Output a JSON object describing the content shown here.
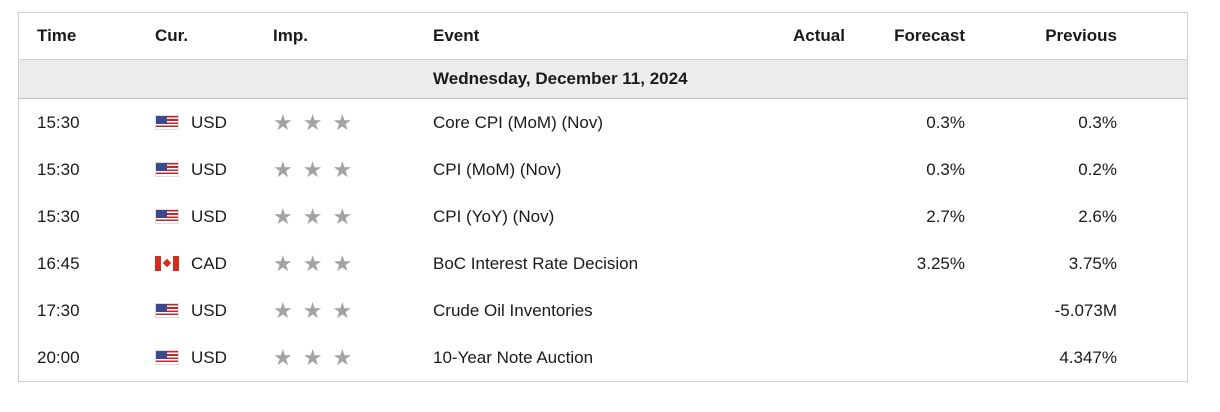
{
  "header": {
    "time": "Time",
    "currency": "Cur.",
    "importance": "Imp.",
    "event": "Event",
    "actual": "Actual",
    "forecast": "Forecast",
    "previous": "Previous"
  },
  "day_label": "Wednesday, December 11, 2024",
  "rows": [
    {
      "time": "15:30",
      "currency": "USD",
      "flag": "us-flag-icon",
      "stars": 3,
      "event": "Core CPI (MoM) (Nov)",
      "actual": "",
      "forecast": "0.3%",
      "previous": "0.3%"
    },
    {
      "time": "15:30",
      "currency": "USD",
      "flag": "us-flag-icon",
      "stars": 3,
      "event": "CPI (MoM) (Nov)",
      "actual": "",
      "forecast": "0.3%",
      "previous": "0.2%"
    },
    {
      "time": "15:30",
      "currency": "USD",
      "flag": "us-flag-icon",
      "stars": 3,
      "event": "CPI (YoY) (Nov)",
      "actual": "",
      "forecast": "2.7%",
      "previous": "2.6%"
    },
    {
      "time": "16:45",
      "currency": "CAD",
      "flag": "canada-flag-icon",
      "stars": 3,
      "event": "BoC Interest Rate Decision",
      "actual": "",
      "forecast": "3.25%",
      "previous": "3.75%"
    },
    {
      "time": "17:30",
      "currency": "USD",
      "flag": "us-flag-icon",
      "stars": 3,
      "event": "Crude Oil Inventories",
      "actual": "",
      "forecast": "",
      "previous": "-5.073M"
    },
    {
      "time": "20:00",
      "currency": "USD",
      "flag": "us-flag-icon",
      "stars": 3,
      "event": "10-Year Note Auction",
      "actual": "",
      "forecast": "",
      "previous": "4.347%"
    }
  ],
  "colors": {
    "star": "#a3a3a3",
    "day_row_bg": "#ececec",
    "border": "#cfcfcf"
  }
}
